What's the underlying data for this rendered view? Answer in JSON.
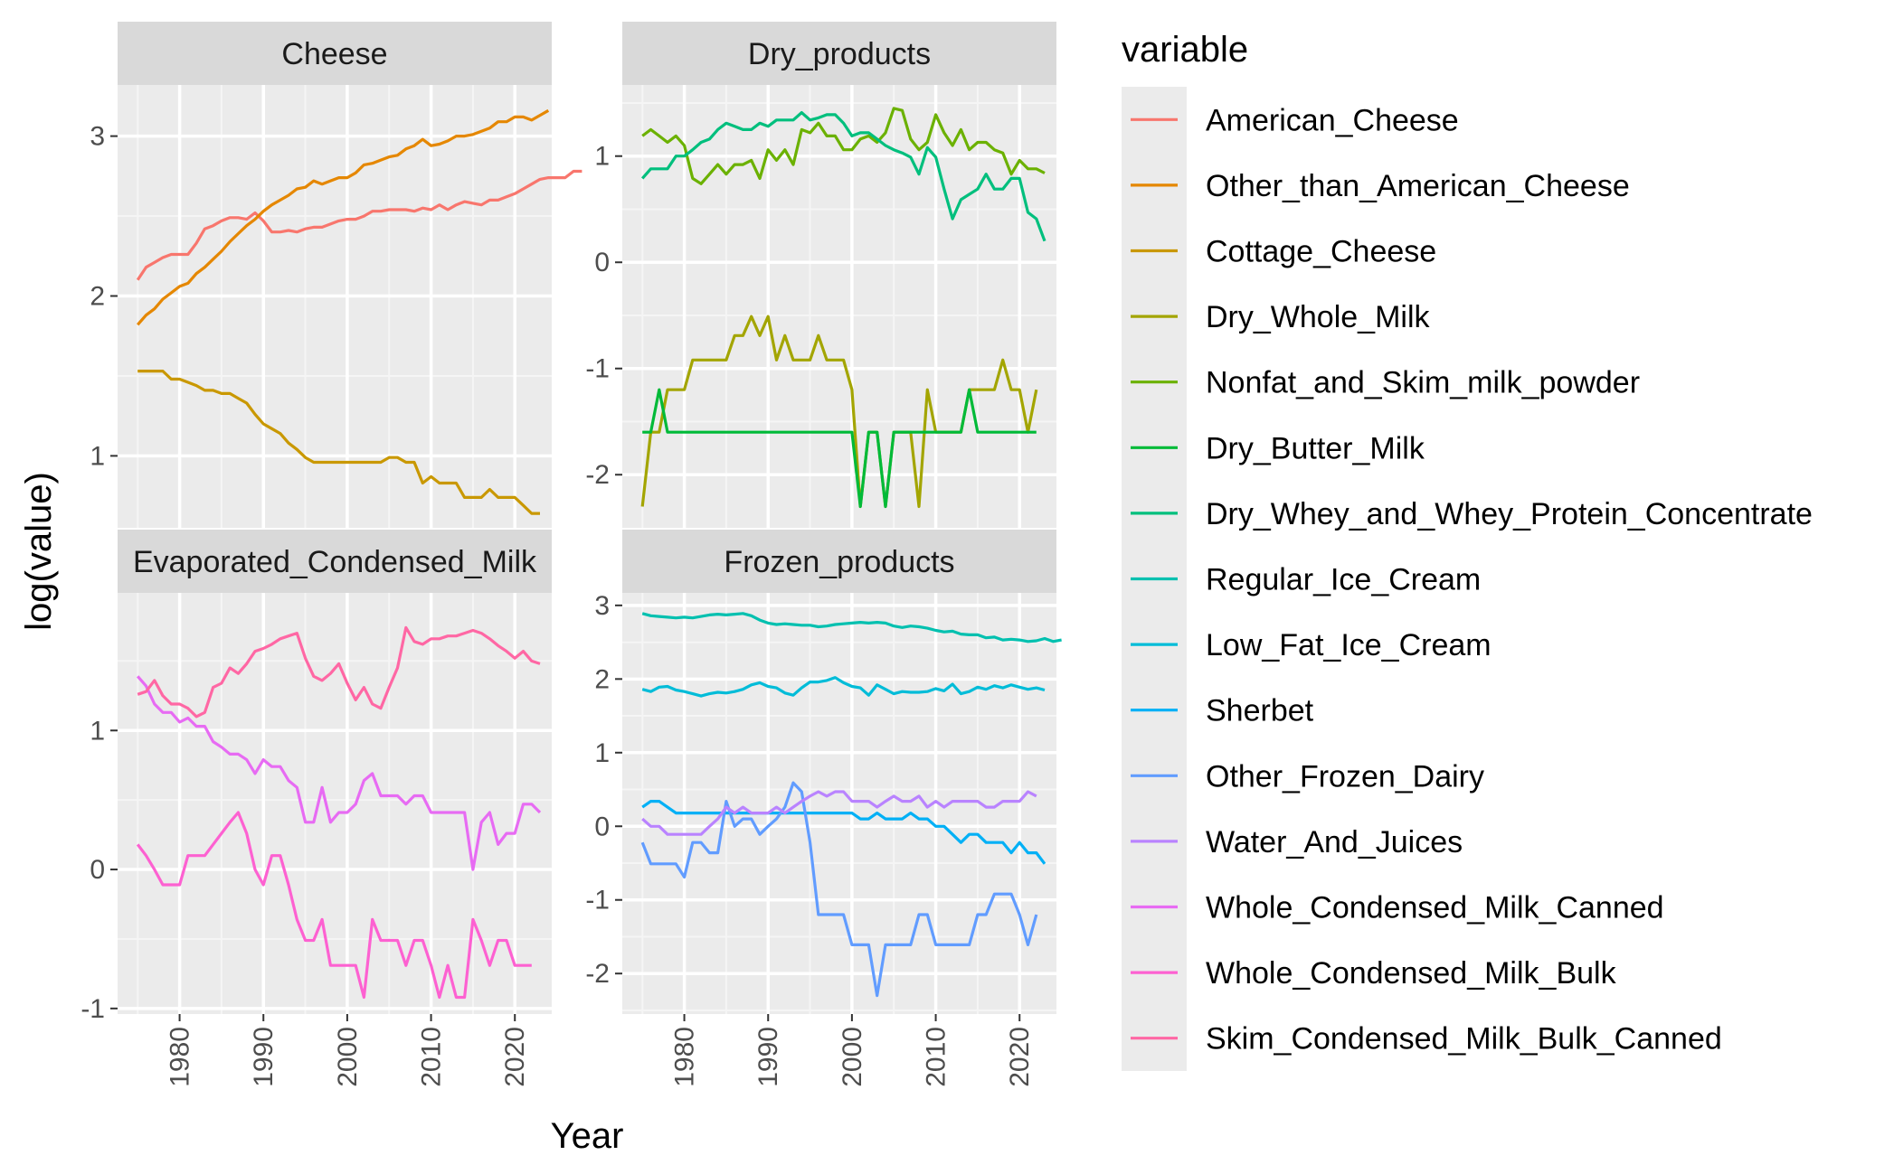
{
  "chart_data": {
    "type": "line",
    "xlabel": "Year",
    "ylabel": "log(value)",
    "legend_title": "variable",
    "legend_position": "right",
    "grid": true,
    "x_ticks": [
      1980,
      1990,
      2000,
      2010,
      2020
    ],
    "series_meta": [
      {
        "name": "American_Cheese",
        "color": "#F8766D"
      },
      {
        "name": "Other_than_American_Cheese",
        "color": "#E58700"
      },
      {
        "name": "Cottage_Cheese",
        "color": "#C99800"
      },
      {
        "name": "Dry_Whole_Milk",
        "color": "#A3A500"
      },
      {
        "name": "Nonfat_and_Skim_milk_powder",
        "color": "#6BB100"
      },
      {
        "name": "Dry_Butter_Milk",
        "color": "#00BA38"
      },
      {
        "name": "Dry_Whey_and_Whey_Protein_Concentrate",
        "color": "#00BF7D"
      },
      {
        "name": "Regular_Ice_Cream",
        "color": "#00C0AF"
      },
      {
        "name": "Low_Fat_Ice_Cream",
        "color": "#00BCD8"
      },
      {
        "name": "Sherbet",
        "color": "#00B0F6"
      },
      {
        "name": "Other_Frozen_Dairy",
        "color": "#619CFF"
      },
      {
        "name": "Water_And_Juices",
        "color": "#B983FF"
      },
      {
        "name": "Whole_Condensed_Milk_Canned",
        "color": "#E76BF3"
      },
      {
        "name": "Whole_Condensed_Milk_Bulk",
        "color": "#FD61D1"
      },
      {
        "name": "Skim_Condensed_Milk_Bulk_Canned",
        "color": "#FF67A4"
      }
    ],
    "panels": [
      {
        "title": "Cheese",
        "xlim": [
          1972.6,
          2024.4
        ],
        "ylim": [
          0.55,
          3.32
        ],
        "y_ticks": [
          1,
          2,
          3
        ],
        "series": [
          {
            "name": "American_Cheese",
            "x_start": 1975,
            "values": [
              2.1,
              2.18,
              2.21,
              2.24,
              2.26,
              2.26,
              2.26,
              2.33,
              2.42,
              2.44,
              2.47,
              2.49,
              2.49,
              2.48,
              2.52,
              2.47,
              2.4,
              2.4,
              2.41,
              2.4,
              2.42,
              2.43,
              2.43,
              2.45,
              2.47,
              2.48,
              2.48,
              2.5,
              2.53,
              2.53,
              2.54,
              2.54,
              2.54,
              2.53,
              2.55,
              2.54,
              2.57,
              2.54,
              2.57,
              2.59,
              2.58,
              2.57,
              2.6,
              2.6,
              2.62,
              2.64,
              2.67,
              2.7,
              2.73,
              2.74,
              2.74,
              2.74,
              2.78,
              2.78
            ]
          },
          {
            "name": "Other_than_American_Cheese",
            "x_start": 1975,
            "values": [
              1.82,
              1.88,
              1.92,
              1.98,
              2.02,
              2.06,
              2.08,
              2.14,
              2.18,
              2.23,
              2.28,
              2.34,
              2.39,
              2.44,
              2.48,
              2.53,
              2.57,
              2.6,
              2.63,
              2.67,
              2.68,
              2.72,
              2.7,
              2.72,
              2.74,
              2.74,
              2.77,
              2.82,
              2.83,
              2.85,
              2.87,
              2.88,
              2.92,
              2.94,
              2.98,
              2.94,
              2.95,
              2.97,
              3.0,
              3.0,
              3.01,
              3.03,
              3.05,
              3.09,
              3.09,
              3.12,
              3.12,
              3.1,
              3.13,
              3.16
            ]
          },
          {
            "name": "Cottage_Cheese",
            "x_start": 1975,
            "values": [
              1.53,
              1.53,
              1.53,
              1.53,
              1.48,
              1.48,
              1.46,
              1.44,
              1.41,
              1.41,
              1.39,
              1.39,
              1.36,
              1.33,
              1.26,
              1.2,
              1.17,
              1.14,
              1.08,
              1.04,
              0.99,
              0.96,
              0.96,
              0.96,
              0.96,
              0.96,
              0.96,
              0.96,
              0.96,
              0.96,
              0.99,
              0.99,
              0.96,
              0.96,
              0.83,
              0.87,
              0.83,
              0.83,
              0.83,
              0.74,
              0.74,
              0.74,
              0.79,
              0.74,
              0.74,
              0.74,
              0.69,
              0.64,
              0.64
            ]
          }
        ]
      },
      {
        "title": "Dry_products",
        "xlim": [
          1972.6,
          2024.4
        ],
        "ylim": [
          -2.5,
          1.67
        ],
        "y_ticks": [
          -2,
          -1,
          0,
          1
        ],
        "series": [
          {
            "name": "Dry_Whole_Milk",
            "x_start": 1975,
            "values": [
              -2.3,
              -1.6,
              -1.6,
              -1.2,
              -1.2,
              -1.2,
              -0.92,
              -0.92,
              -0.92,
              -0.92,
              -0.92,
              -0.69,
              -0.69,
              -0.51,
              -0.69,
              -0.51,
              -0.92,
              -0.69,
              -0.92,
              -0.92,
              -0.92,
              -0.69,
              -0.92,
              -0.92,
              -0.92,
              -1.2,
              -2.3,
              -1.6,
              -1.6,
              -2.3,
              -1.6,
              -1.6,
              -1.6,
              -2.3,
              -1.2,
              -1.6,
              -1.6,
              -1.6,
              -1.6,
              -1.2,
              -1.2,
              -1.2,
              -1.2,
              -0.92,
              -1.2,
              -1.2,
              -1.6,
              -1.2
            ]
          },
          {
            "name": "Nonfat_and_Skim_milk_powder",
            "x_start": 1975,
            "values": [
              1.19,
              1.25,
              1.19,
              1.13,
              1.19,
              1.1,
              0.79,
              0.74,
              0.83,
              0.92,
              0.83,
              0.92,
              0.92,
              0.96,
              0.79,
              1.06,
              0.96,
              1.06,
              0.92,
              1.25,
              1.22,
              1.31,
              1.19,
              1.19,
              1.06,
              1.06,
              1.16,
              1.19,
              1.13,
              1.22,
              1.45,
              1.43,
              1.16,
              1.06,
              1.13,
              1.39,
              1.22,
              1.1,
              1.25,
              1.06,
              1.13,
              1.13,
              1.06,
              1.03,
              0.83,
              0.96,
              0.88,
              0.88,
              0.84
            ]
          },
          {
            "name": "Dry_Butter_Milk",
            "x_start": 1975,
            "values": [
              -1.6,
              -1.6,
              -1.2,
              -1.6,
              -1.6,
              -1.6,
              -1.6,
              -1.6,
              -1.6,
              -1.6,
              -1.6,
              -1.6,
              -1.6,
              -1.6,
              -1.6,
              -1.6,
              -1.6,
              -1.6,
              -1.6,
              -1.6,
              -1.6,
              -1.6,
              -1.6,
              -1.6,
              -1.6,
              -1.6,
              -2.3,
              -1.6,
              -1.6,
              -2.3,
              -1.6,
              -1.6,
              -1.6,
              -1.6,
              -1.6,
              -1.6,
              -1.6,
              -1.6,
              -1.6,
              -1.2,
              -1.6,
              -1.6,
              -1.6,
              -1.6,
              -1.6,
              -1.6,
              -1.6,
              -1.6
            ]
          },
          {
            "name": "Dry_Whey_and_Whey_Protein_Concentrate",
            "x_start": 1975,
            "values": [
              0.79,
              0.88,
              0.88,
              0.88,
              1.0,
              1.0,
              1.06,
              1.13,
              1.16,
              1.25,
              1.31,
              1.28,
              1.25,
              1.25,
              1.31,
              1.28,
              1.34,
              1.34,
              1.34,
              1.41,
              1.34,
              1.36,
              1.39,
              1.39,
              1.31,
              1.19,
              1.22,
              1.22,
              1.16,
              1.1,
              1.06,
              1.03,
              0.99,
              0.83,
              1.08,
              0.99,
              0.69,
              0.41,
              0.59,
              0.64,
              0.69,
              0.83,
              0.69,
              0.69,
              0.79,
              0.79,
              0.47,
              0.41,
              0.2
            ]
          }
        ]
      },
      {
        "title": "Evaporated_Condensed_Milk",
        "xlim": [
          1972.6,
          2024.4
        ],
        "ylim": [
          -1.04,
          1.99
        ],
        "y_ticks": [
          -1,
          0,
          1
        ],
        "series": [
          {
            "name": "Whole_Condensed_Milk_Canned",
            "x_start": 1975,
            "values": [
              1.39,
              1.32,
              1.19,
              1.13,
              1.13,
              1.06,
              1.09,
              1.03,
              1.03,
              0.92,
              0.88,
              0.83,
              0.83,
              0.79,
              0.69,
              0.79,
              0.74,
              0.74,
              0.64,
              0.59,
              0.34,
              0.34,
              0.59,
              0.34,
              0.41,
              0.41,
              0.47,
              0.64,
              0.69,
              0.53,
              0.53,
              0.53,
              0.47,
              0.53,
              0.53,
              0.41,
              0.41,
              0.41,
              0.41,
              0.41,
              0.0,
              0.34,
              0.41,
              0.18,
              0.26,
              0.26,
              0.47,
              0.47,
              0.41
            ]
          },
          {
            "name": "Whole_Condensed_Milk_Bulk",
            "x_start": 1975,
            "values": [
              0.18,
              0.1,
              0.0,
              -0.11,
              -0.11,
              -0.11,
              0.1,
              0.1,
              0.1,
              0.18,
              0.26,
              0.34,
              0.41,
              0.26,
              0.0,
              -0.11,
              0.1,
              0.1,
              -0.11,
              -0.36,
              -0.51,
              -0.51,
              -0.36,
              -0.69,
              -0.69,
              -0.69,
              -0.69,
              -0.92,
              -0.36,
              -0.51,
              -0.51,
              -0.51,
              -0.69,
              -0.51,
              -0.51,
              -0.69,
              -0.92,
              -0.69,
              -0.92,
              -0.92,
              -0.36,
              -0.51,
              -0.69,
              -0.51,
              -0.51,
              -0.69,
              -0.69,
              -0.69
            ]
          },
          {
            "name": "Skim_Condensed_Milk_Bulk_Canned",
            "x_start": 1975,
            "values": [
              1.26,
              1.28,
              1.36,
              1.25,
              1.19,
              1.19,
              1.16,
              1.1,
              1.13,
              1.31,
              1.34,
              1.45,
              1.41,
              1.48,
              1.57,
              1.59,
              1.62,
              1.66,
              1.68,
              1.7,
              1.52,
              1.39,
              1.36,
              1.41,
              1.48,
              1.34,
              1.22,
              1.31,
              1.19,
              1.16,
              1.31,
              1.45,
              1.74,
              1.64,
              1.62,
              1.66,
              1.66,
              1.68,
              1.68,
              1.7,
              1.72,
              1.7,
              1.66,
              1.61,
              1.57,
              1.52,
              1.57,
              1.5,
              1.48
            ]
          }
        ]
      },
      {
        "title": "Frozen_products",
        "xlim": [
          1972.6,
          2024.4
        ],
        "ylim": [
          -2.55,
          3.17
        ],
        "y_ticks": [
          -2,
          -1,
          0,
          1,
          2,
          3
        ],
        "series": [
          {
            "name": "Regular_Ice_Cream",
            "x_start": 1975,
            "values": [
              2.89,
              2.86,
              2.85,
              2.84,
              2.83,
              2.84,
              2.83,
              2.85,
              2.87,
              2.88,
              2.87,
              2.88,
              2.89,
              2.86,
              2.8,
              2.76,
              2.74,
              2.75,
              2.74,
              2.73,
              2.73,
              2.71,
              2.72,
              2.74,
              2.75,
              2.76,
              2.77,
              2.76,
              2.77,
              2.76,
              2.72,
              2.7,
              2.72,
              2.71,
              2.69,
              2.66,
              2.64,
              2.65,
              2.61,
              2.6,
              2.6,
              2.56,
              2.57,
              2.53,
              2.54,
              2.53,
              2.51,
              2.52,
              2.55,
              2.51,
              2.53
            ]
          },
          {
            "name": "Low_Fat_Ice_Cream",
            "x_start": 1975,
            "values": [
              1.86,
              1.83,
              1.89,
              1.9,
              1.85,
              1.83,
              1.8,
              1.77,
              1.8,
              1.82,
              1.81,
              1.83,
              1.86,
              1.92,
              1.95,
              1.9,
              1.88,
              1.81,
              1.78,
              1.88,
              1.96,
              1.96,
              1.98,
              2.02,
              1.95,
              1.9,
              1.88,
              1.78,
              1.92,
              1.86,
              1.8,
              1.83,
              1.82,
              1.82,
              1.83,
              1.87,
              1.84,
              1.93,
              1.8,
              1.83,
              1.89,
              1.86,
              1.91,
              1.88,
              1.92,
              1.89,
              1.86,
              1.88,
              1.85
            ]
          },
          {
            "name": "Sherbet",
            "x_start": 1975,
            "values": [
              0.26,
              0.34,
              0.34,
              0.26,
              0.18,
              0.18,
              0.18,
              0.18,
              0.18,
              0.18,
              0.18,
              0.18,
              0.18,
              0.18,
              0.18,
              0.18,
              0.18,
              0.18,
              0.18,
              0.18,
              0.18,
              0.18,
              0.18,
              0.18,
              0.18,
              0.18,
              0.1,
              0.1,
              0.18,
              0.1,
              0.1,
              0.1,
              0.18,
              0.1,
              0.1,
              0.0,
              0.0,
              -0.11,
              -0.22,
              -0.11,
              -0.11,
              -0.22,
              -0.22,
              -0.22,
              -0.36,
              -0.22,
              -0.36,
              -0.36,
              -0.51
            ]
          },
          {
            "name": "Other_Frozen_Dairy",
            "x_start": 1975,
            "values": [
              -0.22,
              -0.51,
              -0.51,
              -0.51,
              -0.51,
              -0.69,
              -0.22,
              -0.22,
              -0.36,
              -0.36,
              0.34,
              0.0,
              0.1,
              0.1,
              -0.11,
              0.0,
              0.1,
              0.26,
              0.59,
              0.47,
              -0.22,
              -1.2,
              -1.2,
              -1.2,
              -1.2,
              -1.61,
              -1.61,
              -1.61,
              -2.3,
              -1.61,
              -1.61,
              -1.61,
              -1.61,
              -1.2,
              -1.2,
              -1.61,
              -1.61,
              -1.61,
              -1.61,
              -1.61,
              -1.2,
              -1.2,
              -0.92,
              -0.92,
              -0.92,
              -1.2,
              -1.61,
              -1.2
            ]
          },
          {
            "name": "Water_And_Juices",
            "x_start": 1975,
            "values": [
              0.1,
              0.0,
              0.0,
              -0.11,
              -0.11,
              -0.11,
              -0.11,
              -0.11,
              0.0,
              0.1,
              0.26,
              0.18,
              0.26,
              0.18,
              0.18,
              0.18,
              0.26,
              0.18,
              0.26,
              0.34,
              0.41,
              0.47,
              0.41,
              0.47,
              0.47,
              0.34,
              0.34,
              0.34,
              0.26,
              0.34,
              0.41,
              0.34,
              0.34,
              0.41,
              0.26,
              0.34,
              0.26,
              0.34,
              0.34,
              0.34,
              0.34,
              0.26,
              0.26,
              0.34,
              0.34,
              0.34,
              0.47,
              0.41
            ]
          }
        ]
      }
    ]
  }
}
